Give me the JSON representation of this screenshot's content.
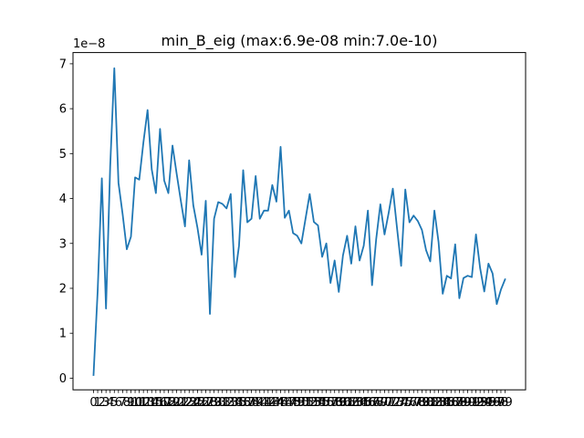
{
  "chart_data": {
    "type": "line",
    "title": "min_B_eig (max:6.9e-08 min:7.0e-10)",
    "xlabel": "",
    "ylabel": "",
    "y_offset_label": "1e−8",
    "x_categories": [
      "0",
      "1",
      "2",
      "3",
      "4",
      "5",
      "6",
      "7",
      "8",
      "9",
      "10",
      "11",
      "12",
      "13",
      "14",
      "15",
      "16",
      "17",
      "18",
      "19",
      "20",
      "21",
      "22",
      "23",
      "24",
      "25",
      "26",
      "27",
      "28",
      "29",
      "30",
      "31",
      "32",
      "33",
      "34",
      "35",
      "36",
      "37",
      "38",
      "39",
      "40",
      "41",
      "42",
      "43",
      "44",
      "45",
      "46",
      "47",
      "48",
      "49",
      "50",
      "51",
      "52",
      "53",
      "54",
      "55",
      "56",
      "57",
      "58",
      "59",
      "60",
      "61",
      "62",
      "63",
      "64",
      "65",
      "66",
      "67",
      "68",
      "69",
      "70",
      "71",
      "72",
      "73",
      "74",
      "75",
      "76",
      "77",
      "78",
      "79",
      "80",
      "81",
      "82",
      "83",
      "84",
      "85",
      "86",
      "87",
      "88",
      "89",
      "90",
      "91",
      "92",
      "93",
      "94",
      "95",
      "96",
      "97",
      "98",
      "99"
    ],
    "y_ticks": [
      "0",
      "1",
      "2",
      "3",
      "4",
      "5",
      "6",
      "7"
    ],
    "ylim": [
      -0.26,
      7.25
    ],
    "grid": false,
    "series": [
      {
        "color": "#1f77b4",
        "values": [
          0.07,
          1.95,
          4.45,
          1.55,
          4.7,
          6.9,
          4.35,
          3.65,
          2.87,
          3.15,
          4.47,
          4.42,
          5.25,
          5.97,
          4.65,
          4.12,
          5.55,
          4.4,
          4.12,
          5.18,
          4.55,
          3.95,
          3.38,
          4.85,
          3.85,
          3.35,
          2.75,
          3.95,
          1.43,
          3.55,
          3.92,
          3.88,
          3.78,
          4.1,
          2.25,
          2.95,
          4.63,
          3.47,
          3.55,
          4.5,
          3.55,
          3.73,
          3.73,
          4.3,
          3.93,
          5.15,
          3.57,
          3.73,
          3.23,
          3.17,
          3.0,
          3.55,
          4.1,
          3.48,
          3.4,
          2.7,
          3.0,
          2.12,
          2.62,
          1.92,
          2.73,
          3.17,
          2.55,
          3.38,
          2.62,
          2.95,
          3.73,
          2.07,
          3.1,
          3.87,
          3.2,
          3.68,
          4.22,
          3.35,
          2.5,
          4.2,
          3.47,
          3.62,
          3.5,
          3.3,
          2.85,
          2.6,
          3.73,
          3.03,
          1.88,
          2.28,
          2.22,
          2.98,
          1.78,
          2.23,
          2.28,
          2.25,
          3.2,
          2.45,
          1.93,
          2.55,
          2.33,
          1.65,
          1.97,
          2.2
        ]
      }
    ]
  }
}
